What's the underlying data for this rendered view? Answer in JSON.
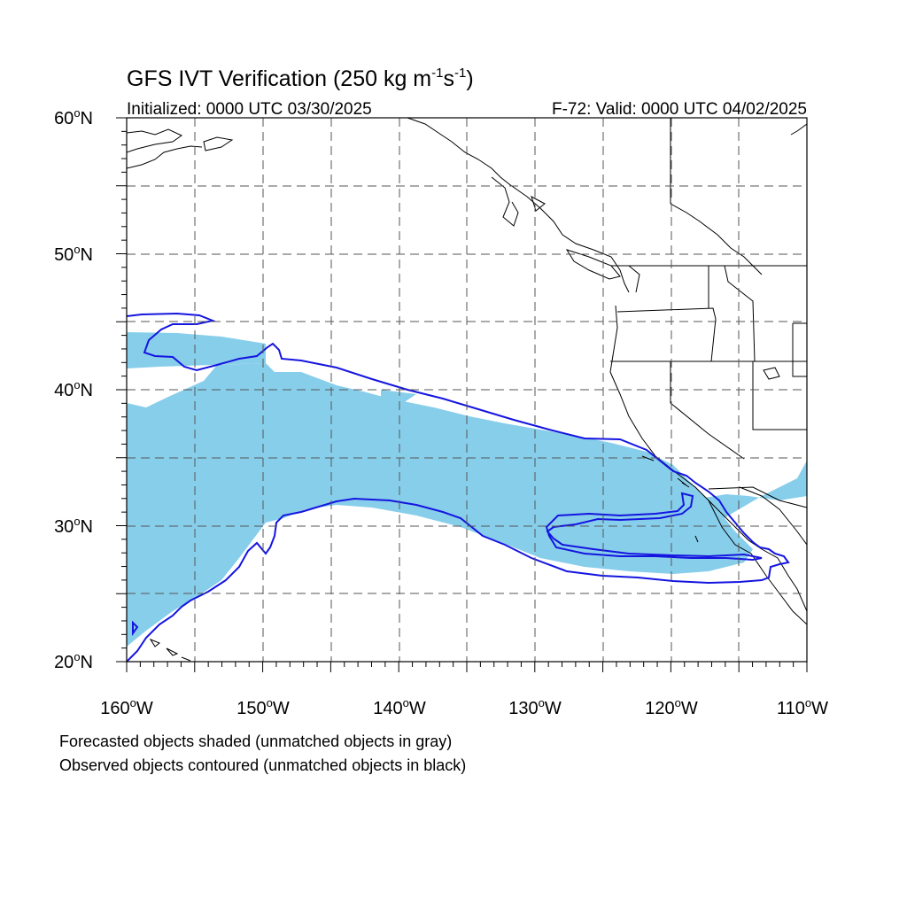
{
  "title": {
    "main": "GFS IVT Verification (250 kg m",
    "sup1": "-1",
    "mid": "s",
    "sup2": "-1",
    "end": ")"
  },
  "initialized": "Initialized: 0000 UTC 03/30/2025",
  "valid": "F-72: Valid: 0000 UTC 04/02/2025",
  "map": {
    "lon_range": [
      -160,
      -110
    ],
    "lat_range": [
      20,
      60
    ],
    "lat_labels": [
      {
        "deg": "60",
        "suffix": "N"
      },
      {
        "deg": "50",
        "suffix": "N"
      },
      {
        "deg": "40",
        "suffix": "N"
      },
      {
        "deg": "30",
        "suffix": "N"
      },
      {
        "deg": "20",
        "suffix": "N"
      }
    ],
    "lon_labels": [
      {
        "deg": "160",
        "suffix": "W"
      },
      {
        "deg": "150",
        "suffix": "W"
      },
      {
        "deg": "140",
        "suffix": "W"
      },
      {
        "deg": "130",
        "suffix": "W"
      },
      {
        "deg": "120",
        "suffix": "W"
      },
      {
        "deg": "110",
        "suffix": "W"
      }
    ],
    "grid_style": "dashed",
    "colors": {
      "forecast_fill": "#87ceeb",
      "observed_contour": "#1515e0",
      "coastline": "#000000",
      "grid": "#555555"
    }
  },
  "caption": {
    "line1": "Forecasted objects shaded (unmatched objects in gray)",
    "line2": "Observed objects contoured (unmatched objects in black)"
  }
}
